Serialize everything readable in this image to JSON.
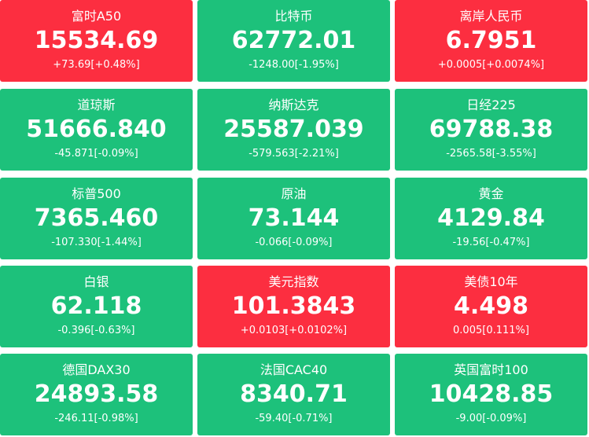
{
  "tiles": [
    {
      "name": "富时A50",
      "price": "15534.69",
      "change": "+73.69[+0.48%]",
      "color": "#fc2e40"
    },
    {
      "name": "比特币",
      "price": "62772.01",
      "change": "-1248.00[-1.95%]",
      "color": "#1dc17b"
    },
    {
      "name": "离岸人民币",
      "price": "6.7951",
      "change": "+0.0005[+0.0074%]",
      "color": "#fc2e40"
    },
    {
      "name": "道琼斯",
      "price": "51666.840",
      "change": "-45.871[-0.09%]",
      "color": "#1dc17b"
    },
    {
      "name": "纳斯达克",
      "price": "25587.039",
      "change": "-579.563[-2.21%]",
      "color": "#1dc17b"
    },
    {
      "name": "日经225",
      "price": "69788.38",
      "change": "-2565.58[-3.55%]",
      "color": "#1dc17b"
    },
    {
      "name": "标普500",
      "price": "7365.460",
      "change": "-107.330[-1.44%]",
      "color": "#1dc17b"
    },
    {
      "name": "原油",
      "price": "73.144",
      "change": "-0.066[-0.09%]",
      "color": "#1dc17b"
    },
    {
      "name": "黄金",
      "price": "4129.84",
      "change": "-19.56[-0.47%]",
      "color": "#1dc17b"
    },
    {
      "name": "白银",
      "price": "62.118",
      "change": "-0.396[-0.63%]",
      "color": "#1dc17b"
    },
    {
      "name": "美元指数",
      "price": "101.3843",
      "change": "+0.0103[+0.0102%]",
      "color": "#fc2e40"
    },
    {
      "name": "美债10年",
      "price": "4.498",
      "change": "0.005[0.111%]",
      "color": "#fc2e40"
    },
    {
      "name": "德国DAX30",
      "price": "24893.58",
      "change": "-246.11[-0.98%]",
      "color": "#1dc17b"
    },
    {
      "name": "法国CAC40",
      "price": "8340.71",
      "change": "-59.40[-0.71%]",
      "color": "#1dc17b"
    },
    {
      "name": "英国富时100",
      "price": "10428.85",
      "change": "-9.00[-0.09%]",
      "color": "#1dc17b"
    }
  ]
}
